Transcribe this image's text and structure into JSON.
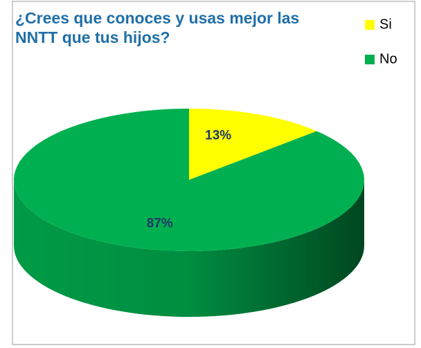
{
  "chart_data": {
    "type": "pie",
    "title": "¿Crees que conoces y usas mejor las NNTT que tus hijos?",
    "categories": [
      "Si",
      "No"
    ],
    "values": [
      13,
      87
    ],
    "value_labels": [
      "13%",
      "87%"
    ],
    "colors": [
      "#ffff00",
      "#00b050"
    ],
    "legend": "top-right"
  }
}
